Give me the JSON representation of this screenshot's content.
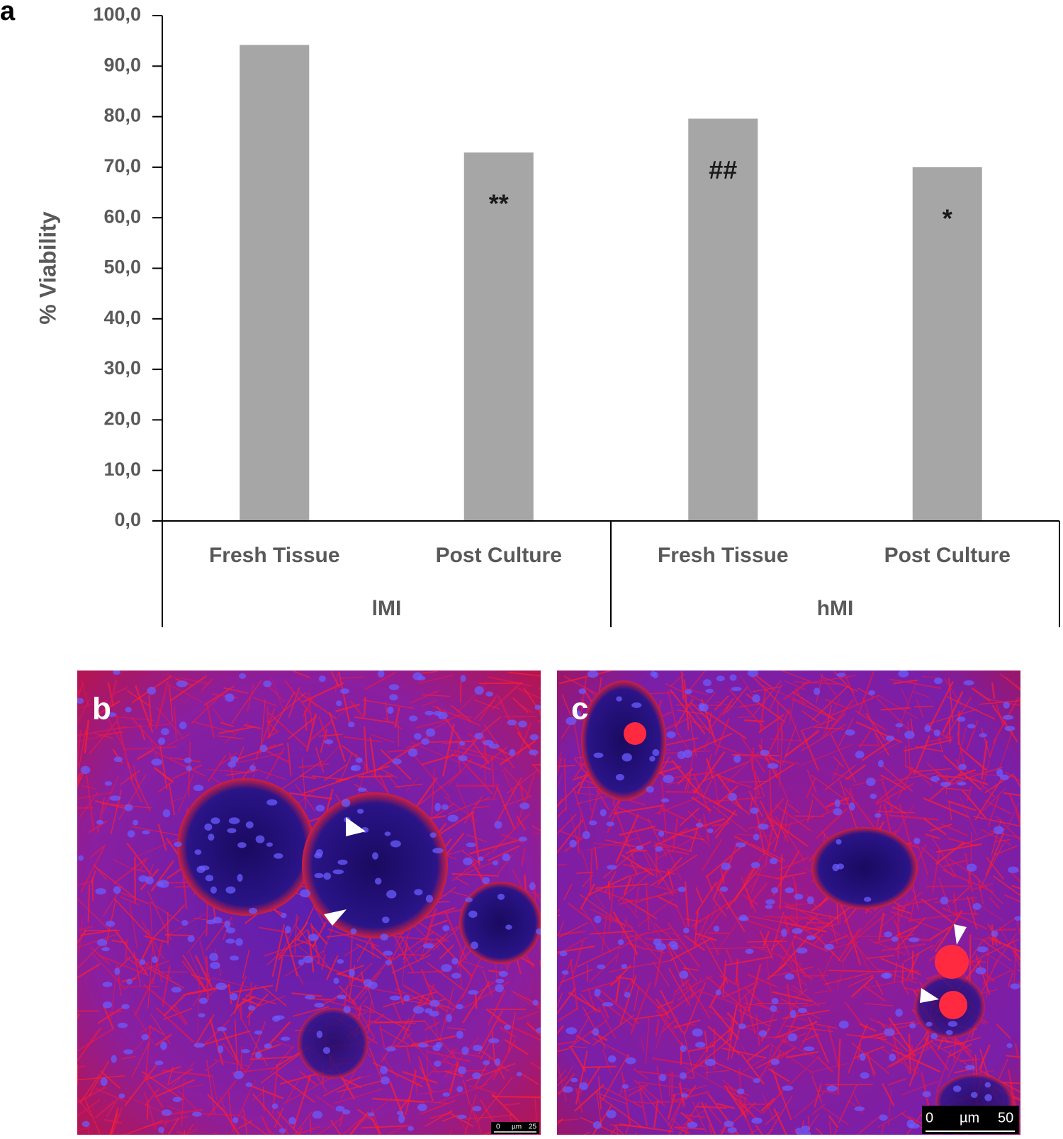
{
  "chart_data": {
    "type": "bar",
    "panel_label": "a",
    "ylabel": "% Viability",
    "color": "#a6a6a6",
    "ylim": [
      0,
      100
    ],
    "yticks": [
      {
        "value": 0,
        "label": "0,0"
      },
      {
        "value": 10,
        "label": "10,0"
      },
      {
        "value": 20,
        "label": "20,0"
      },
      {
        "value": 30,
        "label": "30,0"
      },
      {
        "value": 40,
        "label": "40,0"
      },
      {
        "value": 50,
        "label": "50,0"
      },
      {
        "value": 60,
        "label": "60,0"
      },
      {
        "value": 70,
        "label": "70,0"
      },
      {
        "value": 80,
        "label": "80,0"
      },
      {
        "value": 90,
        "label": "90,0"
      },
      {
        "value": 100,
        "label": "100,0"
      }
    ],
    "groups": [
      {
        "label": "lMI",
        "categories": [
          "Fresh Tissue",
          "Post Culture"
        ],
        "values": [
          94.2,
          72.9
        ],
        "annotations": [
          null,
          "**"
        ]
      },
      {
        "label": "hMI",
        "categories": [
          "Fresh Tissue",
          "Post Culture"
        ],
        "values": [
          79.6,
          70.0
        ],
        "annotations": [
          "##",
          "*"
        ]
      }
    ]
  },
  "panels": [
    {
      "label": "b",
      "scale_bar": [
        "0",
        "µm",
        "25"
      ]
    },
    {
      "label": "c",
      "scale_bar": [
        "0",
        "µm",
        "50"
      ]
    }
  ]
}
